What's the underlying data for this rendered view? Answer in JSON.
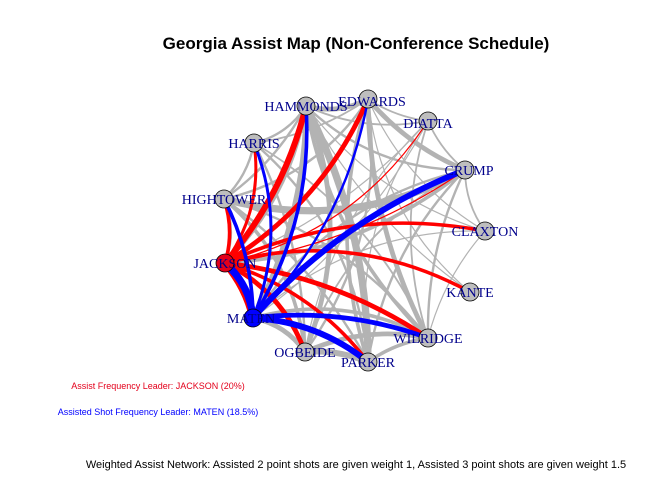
{
  "title": "Georgia Assist Map (Non-Conference Schedule)",
  "colors": {
    "node_default": "#bebebe",
    "node_jackson": "#e3001b",
    "node_maten": "#0000ff",
    "edge_gray": "#b3b3b3",
    "edge_jackson": "#ff0000",
    "edge_maten": "#0000ff",
    "label": "#00008B",
    "note_red": "#e3001b",
    "note_blue": "#0000ff"
  },
  "notes": {
    "assist_leader": "Assist Frequency Leader: JACKSON (20%)",
    "shot_leader": "Assisted Shot Frequency Leader: MATEN (18.5%)",
    "caption": "Weighted Assist Network: Assisted 2 point shots are given weight 1, Assisted 3 point shots are given weight 1.5"
  },
  "nodes": [
    {
      "id": "EDWARDS",
      "label": "EDWARDS",
      "highlight": "none"
    },
    {
      "id": "DIATTA",
      "label": "DIATTA",
      "highlight": "none"
    },
    {
      "id": "CRUMP",
      "label": "CRUMP",
      "highlight": "none"
    },
    {
      "id": "CLAXTON",
      "label": "CLAXTON",
      "highlight": "none"
    },
    {
      "id": "KANTE",
      "label": "KANTE",
      "highlight": "none"
    },
    {
      "id": "WILRIDGE",
      "label": "WILRIDGE",
      "highlight": "none"
    },
    {
      "id": "PARKER",
      "label": "PARKER",
      "highlight": "none"
    },
    {
      "id": "OGBEIDE",
      "label": "OGBEIDE",
      "highlight": "none"
    },
    {
      "id": "MATEN",
      "label": "MATEN",
      "highlight": "shot_leader"
    },
    {
      "id": "JACKSON",
      "label": "JACKSON",
      "highlight": "assist_leader"
    },
    {
      "id": "HIGHTOWER",
      "label": "HIGHTOWER",
      "highlight": "none"
    },
    {
      "id": "HARRIS",
      "label": "HARRIS",
      "highlight": "none"
    },
    {
      "id": "HAMMONDS",
      "label": "HAMMONDS",
      "highlight": "none"
    }
  ],
  "edges": [
    {
      "from": "JACKSON",
      "to": "HAMMONDS",
      "weight": 5,
      "color": "red"
    },
    {
      "from": "JACKSON",
      "to": "EDWARDS",
      "weight": 4,
      "color": "red"
    },
    {
      "from": "JACKSON",
      "to": "HARRIS",
      "weight": 2.5,
      "color": "red"
    },
    {
      "from": "JACKSON",
      "to": "CRUMP",
      "weight": 1,
      "color": "red"
    },
    {
      "from": "JACKSON",
      "to": "CLAXTON",
      "weight": 3,
      "color": "red"
    },
    {
      "from": "JACKSON",
      "to": "KANTE",
      "weight": 3,
      "color": "red"
    },
    {
      "from": "JACKSON",
      "to": "WILRIDGE",
      "weight": 4,
      "color": "red"
    },
    {
      "from": "JACKSON",
      "to": "PARKER",
      "weight": 3,
      "color": "red"
    },
    {
      "from": "JACKSON",
      "to": "OGBEIDE",
      "weight": 4,
      "color": "red"
    },
    {
      "from": "JACKSON",
      "to": "MATEN",
      "weight": 6,
      "color": "red"
    },
    {
      "from": "JACKSON",
      "to": "HIGHTOWER",
      "weight": 3,
      "color": "red"
    },
    {
      "from": "JACKSON",
      "to": "DIATTA",
      "weight": 1,
      "color": "red"
    },
    {
      "from": "MATEN",
      "to": "CRUMP",
      "weight": 5,
      "color": "blue"
    },
    {
      "from": "MATEN",
      "to": "HAMMONDS",
      "weight": 3,
      "color": "blue"
    },
    {
      "from": "MATEN",
      "to": "HARRIS",
      "weight": 2.5,
      "color": "blue"
    },
    {
      "from": "MATEN",
      "to": "WILRIDGE",
      "weight": 4,
      "color": "blue"
    },
    {
      "from": "MATEN",
      "to": "PARKER",
      "weight": 5,
      "color": "blue"
    },
    {
      "from": "MATEN",
      "to": "JACKSON",
      "weight": 6,
      "color": "blue"
    },
    {
      "from": "MATEN",
      "to": "HIGHTOWER",
      "weight": 3,
      "color": "blue"
    },
    {
      "from": "MATEN",
      "to": "EDWARDS",
      "weight": 2,
      "color": "blue"
    },
    {
      "from": "HAMMONDS",
      "to": "EDWARDS",
      "weight": 4,
      "color": "gray"
    },
    {
      "from": "HAMMONDS",
      "to": "PARKER",
      "weight": 6,
      "color": "gray"
    },
    {
      "from": "HAMMONDS",
      "to": "WILRIDGE",
      "weight": 3,
      "color": "gray"
    },
    {
      "from": "HAMMONDS",
      "to": "OGBEIDE",
      "weight": 4,
      "color": "gray"
    },
    {
      "from": "HAMMONDS",
      "to": "MATEN",
      "weight": 4,
      "color": "gray"
    },
    {
      "from": "HAMMONDS",
      "to": "JACKSON",
      "weight": 3,
      "color": "gray"
    },
    {
      "from": "HAMMONDS",
      "to": "CRUMP",
      "weight": 2,
      "color": "gray"
    },
    {
      "from": "HAMMONDS",
      "to": "HIGHTOWER",
      "weight": 2,
      "color": "gray"
    },
    {
      "from": "HAMMONDS",
      "to": "DIATTA",
      "weight": 1.5,
      "color": "gray"
    },
    {
      "from": "HAMMONDS",
      "to": "HARRIS",
      "weight": 2,
      "color": "gray"
    },
    {
      "from": "CRUMP",
      "to": "EDWARDS",
      "weight": 4,
      "color": "gray"
    },
    {
      "from": "CRUMP",
      "to": "JACKSON",
      "weight": 3,
      "color": "gray"
    },
    {
      "from": "CRUMP",
      "to": "HIGHTOWER",
      "weight": 6,
      "color": "gray"
    },
    {
      "from": "CRUMP",
      "to": "WILRIDGE",
      "weight": 2,
      "color": "gray"
    },
    {
      "from": "CRUMP",
      "to": "PARKER",
      "weight": 2,
      "color": "gray"
    },
    {
      "from": "CRUMP",
      "to": "OGBEIDE",
      "weight": 1.5,
      "color": "gray"
    },
    {
      "from": "CRUMP",
      "to": "DIATTA",
      "weight": 1.5,
      "color": "gray"
    },
    {
      "from": "CRUMP",
      "to": "CLAXTON",
      "weight": 1.5,
      "color": "gray"
    },
    {
      "from": "CRUMP",
      "to": "MATEN",
      "weight": 2,
      "color": "gray"
    },
    {
      "from": "EDWARDS",
      "to": "WILRIDGE",
      "weight": 4,
      "color": "gray"
    },
    {
      "from": "EDWARDS",
      "to": "PARKER",
      "weight": 3,
      "color": "gray"
    },
    {
      "from": "EDWARDS",
      "to": "OGBEIDE",
      "weight": 2,
      "color": "gray"
    },
    {
      "from": "EDWARDS",
      "to": "DIATTA",
      "weight": 1.5,
      "color": "gray"
    },
    {
      "from": "EDWARDS",
      "to": "CLAXTON",
      "weight": 1,
      "color": "gray"
    },
    {
      "from": "EDWARDS",
      "to": "HIGHTOWER",
      "weight": 2,
      "color": "gray"
    },
    {
      "from": "EDWARDS",
      "to": "HARRIS",
      "weight": 1.5,
      "color": "gray"
    },
    {
      "from": "HARRIS",
      "to": "HIGHTOWER",
      "weight": 2,
      "color": "gray"
    },
    {
      "from": "HARRIS",
      "to": "PARKER",
      "weight": 2,
      "color": "gray"
    },
    {
      "from": "HARRIS",
      "to": "OGBEIDE",
      "weight": 2,
      "color": "gray"
    },
    {
      "from": "HARRIS",
      "to": "WILRIDGE",
      "weight": 1.5,
      "color": "gray"
    },
    {
      "from": "HIGHTOWER",
      "to": "OGBEIDE",
      "weight": 3,
      "color": "gray"
    },
    {
      "from": "HIGHTOWER",
      "to": "PARKER",
      "weight": 2,
      "color": "gray"
    },
    {
      "from": "HIGHTOWER",
      "to": "WILRIDGE",
      "weight": 2,
      "color": "gray"
    },
    {
      "from": "HIGHTOWER",
      "to": "JACKSON",
      "weight": 2,
      "color": "gray"
    },
    {
      "from": "OGBEIDE",
      "to": "PARKER",
      "weight": 5,
      "color": "gray"
    },
    {
      "from": "OGBEIDE",
      "to": "WILRIDGE",
      "weight": 4,
      "color": "gray"
    },
    {
      "from": "OGBEIDE",
      "to": "MATEN",
      "weight": 4,
      "color": "gray"
    },
    {
      "from": "PARKER",
      "to": "WILRIDGE",
      "weight": 3,
      "color": "gray"
    },
    {
      "from": "PARKER",
      "to": "MATEN",
      "weight": 3,
      "color": "gray"
    },
    {
      "from": "WILRIDGE",
      "to": "MATEN",
      "weight": 3,
      "color": "gray"
    },
    {
      "from": "WILRIDGE",
      "to": "CLAXTON",
      "weight": 1,
      "color": "gray"
    },
    {
      "from": "WILRIDGE",
      "to": "DIATTA",
      "weight": 1.5,
      "color": "gray"
    },
    {
      "from": "KANTE",
      "to": "EDWARDS",
      "weight": 1,
      "color": "gray"
    },
    {
      "from": "KANTE",
      "to": "HAMMONDS",
      "weight": 1,
      "color": "gray"
    },
    {
      "from": "CLAXTON",
      "to": "HAMMONDS",
      "weight": 1,
      "color": "gray"
    },
    {
      "from": "CLAXTON",
      "to": "MATEN",
      "weight": 1,
      "color": "gray"
    },
    {
      "from": "DIATTA",
      "to": "MATEN",
      "weight": 1,
      "color": "gray"
    },
    {
      "from": "DIATTA",
      "to": "OGBEIDE",
      "weight": 1,
      "color": "gray"
    },
    {
      "from": "DIATTA",
      "to": "PARKER",
      "weight": 1,
      "color": "gray"
    },
    {
      "from": "DIATTA",
      "to": "JACKSON",
      "weight": 1,
      "color": "gray"
    }
  ]
}
